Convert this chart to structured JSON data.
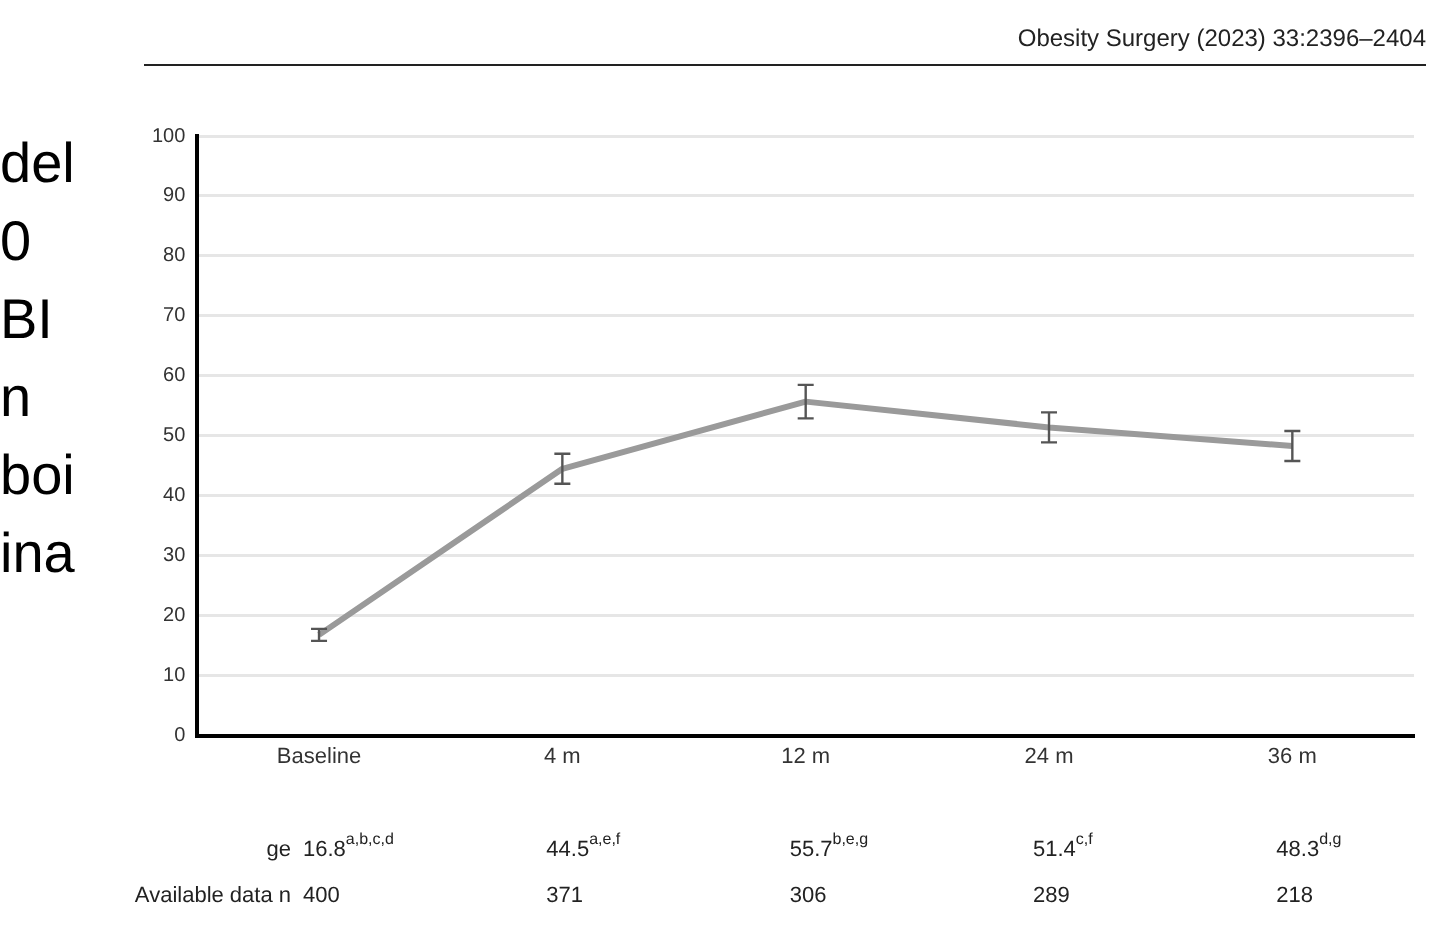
{
  "chart_data": {
    "type": "line",
    "title": "Obesity Surgery (2023) 33:2396–2404",
    "categories": [
      "Baseline",
      "4 m",
      "12 m",
      "24 m",
      "36 m"
    ],
    "series": [
      {
        "color": "#9a9a9a",
        "values": [
          16.8,
          44.5,
          55.7,
          51.4,
          48.3
        ],
        "errors": [
          1,
          2.5,
          2.8,
          2.5,
          2.5
        ],
        "value_labels": [
          "16.8$^{a,b,c,d}$",
          "44.5$^{a,e,f}$",
          "55.7$^{b,e,g}$",
          "51.4$^{c,f}$",
          "48.3$^{d,g}$"
        ]
      }
    ],
    "ylim": [
      0,
      100
    ],
    "yticks": [
      0,
      10,
      20,
      30,
      40,
      50,
      60,
      70,
      80,
      90,
      100
    ],
    "grid": "y",
    "legend": false,
    "marker": "none",
    "line_style": "solid",
    "annotations": [
      "del",
      "0",
      "BI",
      "n",
      "boi",
      "ina",
      "ge",
      "Available data n",
      "400",
      "371",
      "306",
      "289",
      "218"
    ]
  }
}
